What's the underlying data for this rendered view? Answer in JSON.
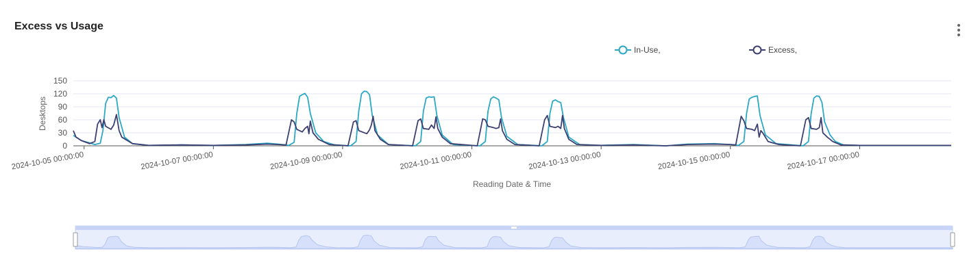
{
  "title": "Excess vs Usage",
  "menu_icon": "more-vertical-icon",
  "colors": {
    "in_use": "#2ba8c4",
    "excess": "#3c3f72",
    "grid": "#e4e7f0",
    "axis": "#444444",
    "zoom_fill": "#d6e0fa",
    "zoom_bg": "#e8eefc"
  },
  "chart_data": {
    "type": "line",
    "title": "Excess vs Usage",
    "xlabel": "Reading Date & Time",
    "ylabel": "Desktops",
    "ylim": [
      0,
      150
    ],
    "yticks": [
      "0",
      "30",
      "60",
      "90",
      "120",
      "150"
    ],
    "xlim": [
      "2024-10-04 20:00:00",
      "2024-10-18 10:00:00"
    ],
    "xticks": [
      "2024-10-05 00:00:00",
      "2024-10-07 00:00:00",
      "2024-10-09 00:00:00",
      "2024-10-11 00:00:00",
      "2024-10-13 00:00:00",
      "2024-10-15 00:00:00",
      "2024-10-17 00:00:00"
    ],
    "legend_position": "top",
    "grid": true,
    "series": [
      {
        "name": "In-Use,",
        "color": "#2ba8c4",
        "points": [
          [
            "2024-10-04 20:00",
            24
          ],
          [
            "2024-10-04 23:00",
            12
          ],
          [
            "2024-10-05 02:00",
            7
          ],
          [
            "2024-10-05 04:00",
            3
          ],
          [
            "2024-10-05 06:00",
            6
          ],
          [
            "2024-10-05 07:00",
            35
          ],
          [
            "2024-10-05 08:00",
            98
          ],
          [
            "2024-10-05 09:00",
            112
          ],
          [
            "2024-10-05 10:00",
            111
          ],
          [
            "2024-10-05 11:00",
            116
          ],
          [
            "2024-10-05 12:00",
            110
          ],
          [
            "2024-10-05 13:00",
            65
          ],
          [
            "2024-10-05 15:00",
            20
          ],
          [
            "2024-10-05 18:00",
            5
          ],
          [
            "2024-10-06 00:00",
            1
          ],
          [
            "2024-10-06 12:00",
            2
          ],
          [
            "2024-10-07 00:00",
            1
          ],
          [
            "2024-10-07 12:00",
            3
          ],
          [
            "2024-10-07 20:00",
            6
          ],
          [
            "2024-10-08 00:00",
            4
          ],
          [
            "2024-10-08 04:00",
            1
          ],
          [
            "2024-10-08 06:00",
            8
          ],
          [
            "2024-10-08 07:00",
            75
          ],
          [
            "2024-10-08 08:00",
            114
          ],
          [
            "2024-10-08 09:00",
            118
          ],
          [
            "2024-10-08 10:00",
            121
          ],
          [
            "2024-10-08 11:00",
            112
          ],
          [
            "2024-10-08 12:00",
            75
          ],
          [
            "2024-10-08 14:00",
            30
          ],
          [
            "2024-10-08 17:00",
            10
          ],
          [
            "2024-10-08 21:00",
            2
          ],
          [
            "2024-10-09 03:00",
            0
          ],
          [
            "2024-10-09 05:00",
            10
          ],
          [
            "2024-10-09 06:00",
            80
          ],
          [
            "2024-10-09 07:00",
            120
          ],
          [
            "2024-10-09 08:00",
            126
          ],
          [
            "2024-10-09 09:00",
            125
          ],
          [
            "2024-10-09 10:00",
            118
          ],
          [
            "2024-10-09 11:00",
            70
          ],
          [
            "2024-10-09 13:00",
            25
          ],
          [
            "2024-10-09 17:00",
            3
          ],
          [
            "2024-10-10 03:00",
            0
          ],
          [
            "2024-10-10 05:00",
            10
          ],
          [
            "2024-10-10 06:00",
            80
          ],
          [
            "2024-10-10 07:00",
            110
          ],
          [
            "2024-10-10 08:00",
            113
          ],
          [
            "2024-10-10 09:00",
            112
          ],
          [
            "2024-10-10 10:00",
            113
          ],
          [
            "2024-10-10 11:00",
            70
          ],
          [
            "2024-10-10 13:00",
            25
          ],
          [
            "2024-10-10 17:00",
            3
          ],
          [
            "2024-10-11 03:00",
            0
          ],
          [
            "2024-10-11 05:00",
            10
          ],
          [
            "2024-10-11 06:00",
            80
          ],
          [
            "2024-10-11 07:00",
            108
          ],
          [
            "2024-10-11 08:00",
            113
          ],
          [
            "2024-10-11 09:00",
            110
          ],
          [
            "2024-10-11 10:00",
            106
          ],
          [
            "2024-10-11 11:00",
            65
          ],
          [
            "2024-10-11 13:00",
            22
          ],
          [
            "2024-10-11 17:00",
            3
          ],
          [
            "2024-10-12 02:00",
            0
          ],
          [
            "2024-10-12 04:00",
            10
          ],
          [
            "2024-10-12 05:00",
            75
          ],
          [
            "2024-10-12 06:00",
            103
          ],
          [
            "2024-10-12 07:00",
            106
          ],
          [
            "2024-10-12 08:00",
            102
          ],
          [
            "2024-10-12 09:00",
            100
          ],
          [
            "2024-10-12 10:00",
            65
          ],
          [
            "2024-10-12 12:00",
            20
          ],
          [
            "2024-10-12 16:00",
            3
          ],
          [
            "2024-10-13 00:00",
            1
          ],
          [
            "2024-10-13 12:00",
            3
          ],
          [
            "2024-10-14 00:00",
            0
          ],
          [
            "2024-10-14 08:00",
            4
          ],
          [
            "2024-10-14 18:00",
            5
          ],
          [
            "2024-10-15 00:00",
            3
          ],
          [
            "2024-10-15 03:00",
            1
          ],
          [
            "2024-10-15 05:00",
            10
          ],
          [
            "2024-10-15 06:00",
            75
          ],
          [
            "2024-10-15 07:00",
            108
          ],
          [
            "2024-10-15 08:00",
            112
          ],
          [
            "2024-10-15 09:00",
            114
          ],
          [
            "2024-10-15 10:00",
            115
          ],
          [
            "2024-10-15 11:00",
            70
          ],
          [
            "2024-10-15 13:00",
            25
          ],
          [
            "2024-10-15 17:00",
            5
          ],
          [
            "2024-10-16 03:00",
            0
          ],
          [
            "2024-10-16 05:00",
            10
          ],
          [
            "2024-10-16 06:00",
            75
          ],
          [
            "2024-10-16 07:00",
            110
          ],
          [
            "2024-10-16 08:00",
            115
          ],
          [
            "2024-10-16 09:00",
            114
          ],
          [
            "2024-10-16 10:00",
            100
          ],
          [
            "2024-10-16 11:00",
            55
          ],
          [
            "2024-10-16 13:00",
            25
          ],
          [
            "2024-10-16 15:00",
            10
          ],
          [
            "2024-10-16 18:00",
            2
          ],
          [
            "2024-10-17 00:00",
            1
          ],
          [
            "2024-10-18 10:00",
            1
          ]
        ]
      },
      {
        "name": "Excess,",
        "color": "#3c3f72",
        "points": [
          [
            "2024-10-04 20:00",
            35
          ],
          [
            "2024-10-04 21:00",
            20
          ],
          [
            "2024-10-04 23:00",
            12
          ],
          [
            "2024-10-05 02:00",
            5
          ],
          [
            "2024-10-05 04:00",
            10
          ],
          [
            "2024-10-05 05:00",
            50
          ],
          [
            "2024-10-05 06:00",
            60
          ],
          [
            "2024-10-05 06:40",
            42
          ],
          [
            "2024-10-05 07:20",
            60
          ],
          [
            "2024-10-05 08:00",
            45
          ],
          [
            "2024-10-05 10:00",
            38
          ],
          [
            "2024-10-05 11:00",
            48
          ],
          [
            "2024-10-05 12:00",
            72
          ],
          [
            "2024-10-05 13:00",
            35
          ],
          [
            "2024-10-05 14:00",
            20
          ],
          [
            "2024-10-05 18:00",
            5
          ],
          [
            "2024-10-06 00:00",
            1
          ],
          [
            "2024-10-06 12:00",
            2
          ],
          [
            "2024-10-07 00:00",
            1
          ],
          [
            "2024-10-07 12:00",
            2
          ],
          [
            "2024-10-07 20:00",
            4
          ],
          [
            "2024-10-08 00:00",
            3
          ],
          [
            "2024-10-08 03:00",
            2
          ],
          [
            "2024-10-08 05:00",
            60
          ],
          [
            "2024-10-08 06:00",
            55
          ],
          [
            "2024-10-08 07:00",
            38
          ],
          [
            "2024-10-08 09:00",
            32
          ],
          [
            "2024-10-08 10:00",
            40
          ],
          [
            "2024-10-08 11:00",
            45
          ],
          [
            "2024-10-08 11:30",
            28
          ],
          [
            "2024-10-08 12:00",
            57
          ],
          [
            "2024-10-08 13:00",
            30
          ],
          [
            "2024-10-08 15:00",
            15
          ],
          [
            "2024-10-08 19:00",
            3
          ],
          [
            "2024-10-09 02:00",
            0
          ],
          [
            "2024-10-09 04:00",
            55
          ],
          [
            "2024-10-09 05:00",
            58
          ],
          [
            "2024-10-09 06:00",
            35
          ],
          [
            "2024-10-09 09:00",
            28
          ],
          [
            "2024-10-09 10:00",
            37
          ],
          [
            "2024-10-09 10:40",
            48
          ],
          [
            "2024-10-09 11:20",
            68
          ],
          [
            "2024-10-09 12:00",
            35
          ],
          [
            "2024-10-09 14:00",
            15
          ],
          [
            "2024-10-09 17:00",
            3
          ],
          [
            "2024-10-10 02:00",
            0
          ],
          [
            "2024-10-10 04:00",
            58
          ],
          [
            "2024-10-10 05:00",
            62
          ],
          [
            "2024-10-10 06:00",
            40
          ],
          [
            "2024-10-10 08:00",
            38
          ],
          [
            "2024-10-10 09:00",
            48
          ],
          [
            "2024-10-10 10:00",
            40
          ],
          [
            "2024-10-10 10:40",
            67
          ],
          [
            "2024-10-10 11:20",
            40
          ],
          [
            "2024-10-10 13:00",
            20
          ],
          [
            "2024-10-10 16:00",
            5
          ],
          [
            "2024-10-11 02:00",
            0
          ],
          [
            "2024-10-11 04:00",
            62
          ],
          [
            "2024-10-11 05:00",
            60
          ],
          [
            "2024-10-11 06:00",
            45
          ],
          [
            "2024-10-11 08:00",
            42
          ],
          [
            "2024-10-11 09:00",
            40
          ],
          [
            "2024-10-11 10:00",
            42
          ],
          [
            "2024-10-11 10:40",
            62
          ],
          [
            "2024-10-11 11:20",
            35
          ],
          [
            "2024-10-11 13:00",
            15
          ],
          [
            "2024-10-11 16:00",
            3
          ],
          [
            "2024-10-12 01:00",
            0
          ],
          [
            "2024-10-12 03:00",
            60
          ],
          [
            "2024-10-12 04:00",
            70
          ],
          [
            "2024-10-12 05:00",
            45
          ],
          [
            "2024-10-12 07:00",
            42
          ],
          [
            "2024-10-12 08:00",
            45
          ],
          [
            "2024-10-12 09:00",
            40
          ],
          [
            "2024-10-12 09:40",
            70
          ],
          [
            "2024-10-12 10:20",
            40
          ],
          [
            "2024-10-12 12:00",
            15
          ],
          [
            "2024-10-12 15:00",
            3
          ],
          [
            "2024-10-13 00:00",
            1
          ],
          [
            "2024-10-13 12:00",
            2
          ],
          [
            "2024-10-14 00:00",
            0
          ],
          [
            "2024-10-14 08:00",
            3
          ],
          [
            "2024-10-14 18:00",
            4
          ],
          [
            "2024-10-15 00:00",
            3
          ],
          [
            "2024-10-15 02:00",
            2
          ],
          [
            "2024-10-15 04:00",
            68
          ],
          [
            "2024-10-15 05:00",
            58
          ],
          [
            "2024-10-15 06:00",
            40
          ],
          [
            "2024-10-15 08:00",
            38
          ],
          [
            "2024-10-15 09:00",
            35
          ],
          [
            "2024-10-15 10:00",
            50
          ],
          [
            "2024-10-15 10:40",
            20
          ],
          [
            "2024-10-15 11:20",
            35
          ],
          [
            "2024-10-15 12:00",
            30
          ],
          [
            "2024-10-15 14:00",
            10
          ],
          [
            "2024-10-15 18:00",
            3
          ],
          [
            "2024-10-16 02:00",
            0
          ],
          [
            "2024-10-16 04:00",
            60
          ],
          [
            "2024-10-16 05:00",
            65
          ],
          [
            "2024-10-16 06:00",
            40
          ],
          [
            "2024-10-16 08:00",
            38
          ],
          [
            "2024-10-16 09:00",
            42
          ],
          [
            "2024-10-16 09:40",
            65
          ],
          [
            "2024-10-16 10:20",
            30
          ],
          [
            "2024-10-16 12:00",
            20
          ],
          [
            "2024-10-16 14:00",
            10
          ],
          [
            "2024-10-16 17:00",
            2
          ],
          [
            "2024-10-17 00:00",
            1
          ],
          [
            "2024-10-18 10:00",
            1
          ]
        ]
      }
    ],
    "zoom_range": [
      0,
      1
    ]
  }
}
